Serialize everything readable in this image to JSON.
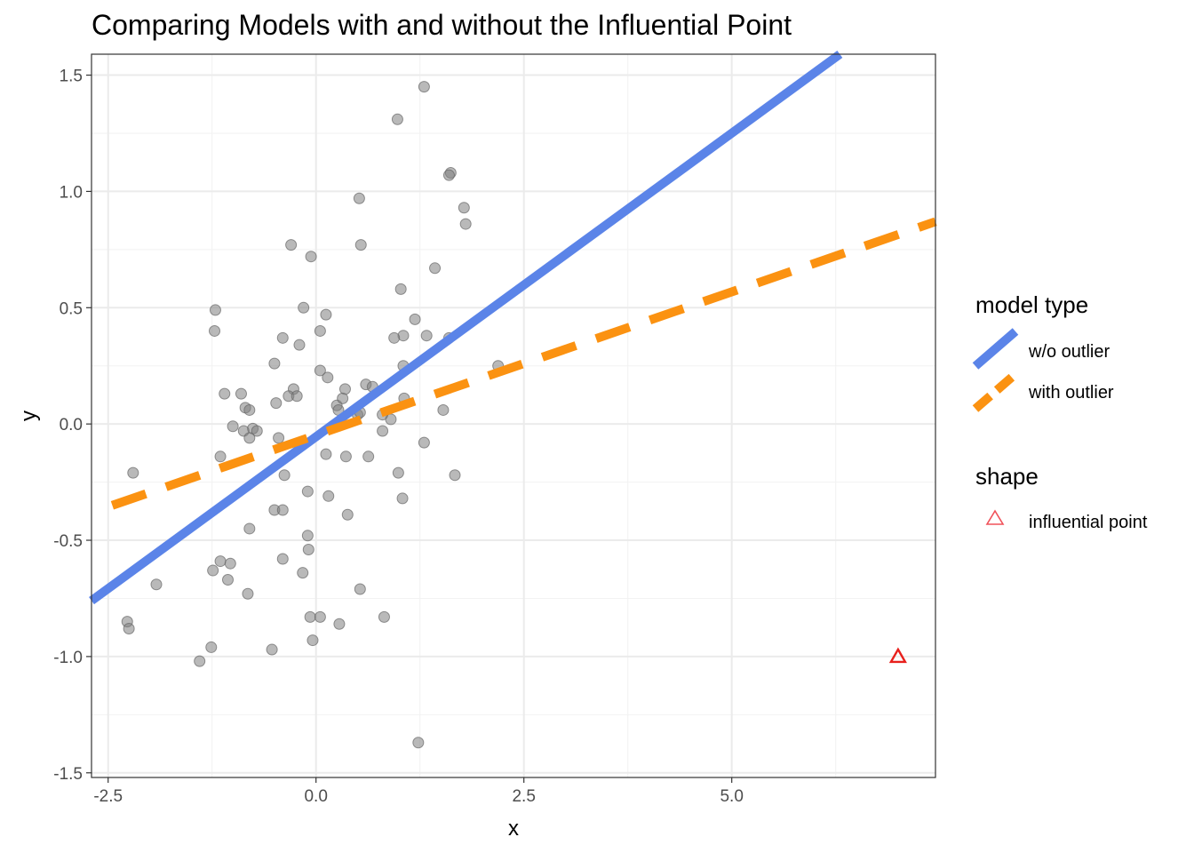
{
  "chart_data": {
    "type": "scatter",
    "title": "Comparing Models with and without the Influential Point",
    "xlabel": "x",
    "ylabel": "y",
    "xlim": [
      -2.7,
      7.45
    ],
    "ylim": [
      -1.52,
      1.59
    ],
    "x_ticks": [
      -2.5,
      0.0,
      2.5,
      5.0
    ],
    "x_tick_labels": [
      "-2.5",
      "0.0",
      "2.5",
      "5.0"
    ],
    "y_ticks": [
      -1.5,
      -1.0,
      -0.5,
      0.0,
      0.5,
      1.0,
      1.5
    ],
    "y_tick_labels": [
      "-1.5",
      "-1.0",
      "-0.5",
      "0.0",
      "0.5",
      "1.0",
      "1.5"
    ],
    "grid": true,
    "legend_position": "right",
    "legends": [
      {
        "title": "model type",
        "items": [
          {
            "label": "w/o outlier",
            "color": "#5b84e8",
            "linestyle": "solid"
          },
          {
            "label": "with outlier",
            "color": "#fb9211",
            "linestyle": "dashed"
          }
        ]
      },
      {
        "title": "shape",
        "items": [
          {
            "label": "influential point",
            "color": "#f0525a",
            "marker": "triangle-open"
          }
        ]
      }
    ],
    "lines": [
      {
        "name": "w/o outlier",
        "color": "#5b84e8",
        "style": "solid",
        "x": [
          -2.7,
          6.3
        ],
        "y": [
          -0.76,
          1.59
        ]
      },
      {
        "name": "with outlier",
        "color": "#fb9211",
        "style": "dashed",
        "x": [
          -2.45,
          7.45
        ],
        "y": [
          -0.35,
          0.87
        ]
      }
    ],
    "points": {
      "color": "#808080",
      "x": [
        1.3,
        0.98,
        1.62,
        1.6,
        0.52,
        1.78,
        1.8,
        -0.3,
        -0.06,
        0.54,
        1.43,
        1.02,
        -1.21,
        -0.15,
        0.12,
        1.19,
        0.05,
        1.05,
        0.94,
        -1.22,
        1.33,
        -0.4,
        -0.2,
        1.6,
        2.19,
        -0.5,
        0.05,
        1.05,
        0.14,
        0.6,
        0.68,
        -0.27,
        -1.1,
        -0.9,
        -0.33,
        -0.23,
        -0.48,
        -0.85,
        -0.8,
        0.25,
        1.53,
        0.35,
        0.27,
        0.5,
        -1.0,
        -0.76,
        -0.87,
        0.8,
        -0.71,
        1.06,
        0.9,
        0.53,
        0.32,
        -0.45,
        -0.8,
        0.8,
        1.3,
        -1.15,
        0.12,
        0.36,
        0.63,
        -2.2,
        0.99,
        1.67,
        -0.38,
        -0.1,
        0.15,
        1.04,
        -0.5,
        -0.4,
        0.38,
        -0.8,
        -0.1,
        -0.09,
        -0.4,
        -1.15,
        -1.24,
        -1.03,
        -0.16,
        -1.06,
        -1.92,
        0.53,
        -0.82,
        0.82,
        -0.07,
        0.05,
        0.28,
        -2.27,
        -2.25,
        -0.53,
        -0.04,
        -1.26,
        -1.4,
        1.23
      ],
      "y": [
        1.45,
        1.31,
        1.08,
        1.07,
        0.97,
        0.93,
        0.86,
        0.77,
        0.72,
        0.77,
        0.67,
        0.58,
        0.49,
        0.5,
        0.47,
        0.45,
        0.4,
        0.38,
        0.37,
        0.4,
        0.38,
        0.37,
        0.34,
        0.37,
        0.25,
        0.26,
        0.23,
        0.25,
        0.2,
        0.17,
        0.16,
        0.15,
        0.13,
        0.13,
        0.12,
        0.12,
        0.09,
        0.07,
        0.06,
        0.08,
        0.06,
        0.15,
        0.06,
        0.04,
        -0.01,
        -0.02,
        -0.03,
        0.04,
        -0.03,
        0.11,
        0.02,
        0.05,
        0.11,
        -0.06,
        -0.06,
        -0.03,
        -0.08,
        -0.14,
        -0.13,
        -0.14,
        -0.14,
        -0.21,
        -0.21,
        -0.22,
        -0.22,
        -0.29,
        -0.31,
        -0.32,
        -0.37,
        -0.37,
        -0.39,
        -0.45,
        -0.48,
        -0.54,
        -0.58,
        -0.59,
        -0.63,
        -0.6,
        -0.64,
        -0.67,
        -0.69,
        -0.71,
        -0.73,
        -0.83,
        -0.83,
        -0.83,
        -0.86,
        -0.85,
        -0.88,
        -0.97,
        -0.93,
        -0.96,
        -1.02,
        -1.37
      ]
    },
    "influential_point": {
      "label": "influential point",
      "x": 7.0,
      "y": -1.0,
      "color": "#e8201c"
    }
  }
}
